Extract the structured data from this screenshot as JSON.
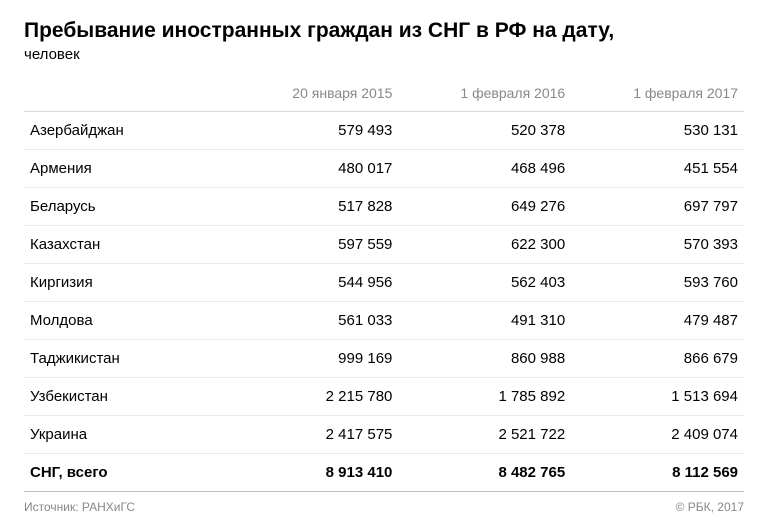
{
  "title": "Пребывание иностранных граждан из СНГ в РФ на дату,",
  "subtitle": "человек",
  "columns": [
    "",
    "20 января 2015",
    "1 февраля 2016",
    "1 февраля 2017"
  ],
  "rows": [
    {
      "country": "Азербайджан",
      "c1": "579 493",
      "c2": "520 378",
      "c3": "530 131"
    },
    {
      "country": "Армения",
      "c1": "480 017",
      "c2": "468 496",
      "c3": "451 554"
    },
    {
      "country": "Беларусь",
      "c1": "517 828",
      "c2": "649 276",
      "c3": "697 797"
    },
    {
      "country": "Казахстан",
      "c1": "597 559",
      "c2": "622 300",
      "c3": "570 393"
    },
    {
      "country": "Киргизия",
      "c1": "544 956",
      "c2": "562 403",
      "c3": "593 760"
    },
    {
      "country": "Молдова",
      "c1": "561 033",
      "c2": "491 310",
      "c3": "479 487"
    },
    {
      "country": "Таджикистан",
      "c1": "999 169",
      "c2": "860 988",
      "c3": "866 679"
    },
    {
      "country": "Узбекистан",
      "c1": "2 215 780",
      "c2": "1 785 892",
      "c3": "1 513 694"
    },
    {
      "country": "Украина",
      "c1": "2 417 575",
      "c2": "2 521 722",
      "c3": "2 409 074"
    }
  ],
  "total": {
    "country": "СНГ, всего",
    "c1": "8 913 410",
    "c2": "8 482 765",
    "c3": "8 112 569"
  },
  "source": "Источник: РАНХиГС",
  "copyright": "© РБК, 2017",
  "col_widths": [
    "28%",
    "24%",
    "24%",
    "24%"
  ],
  "colors": {
    "header_text": "#888888",
    "row_border": "#eaeaea",
    "header_border": "#d9d9d9",
    "total_border": "#bbbbbb",
    "footer_text": "#888888",
    "background": "#ffffff",
    "text": "#000000"
  },
  "font_sizes": {
    "title": 21,
    "subtitle": 15,
    "header": 14,
    "body": 15,
    "footer": 12
  }
}
